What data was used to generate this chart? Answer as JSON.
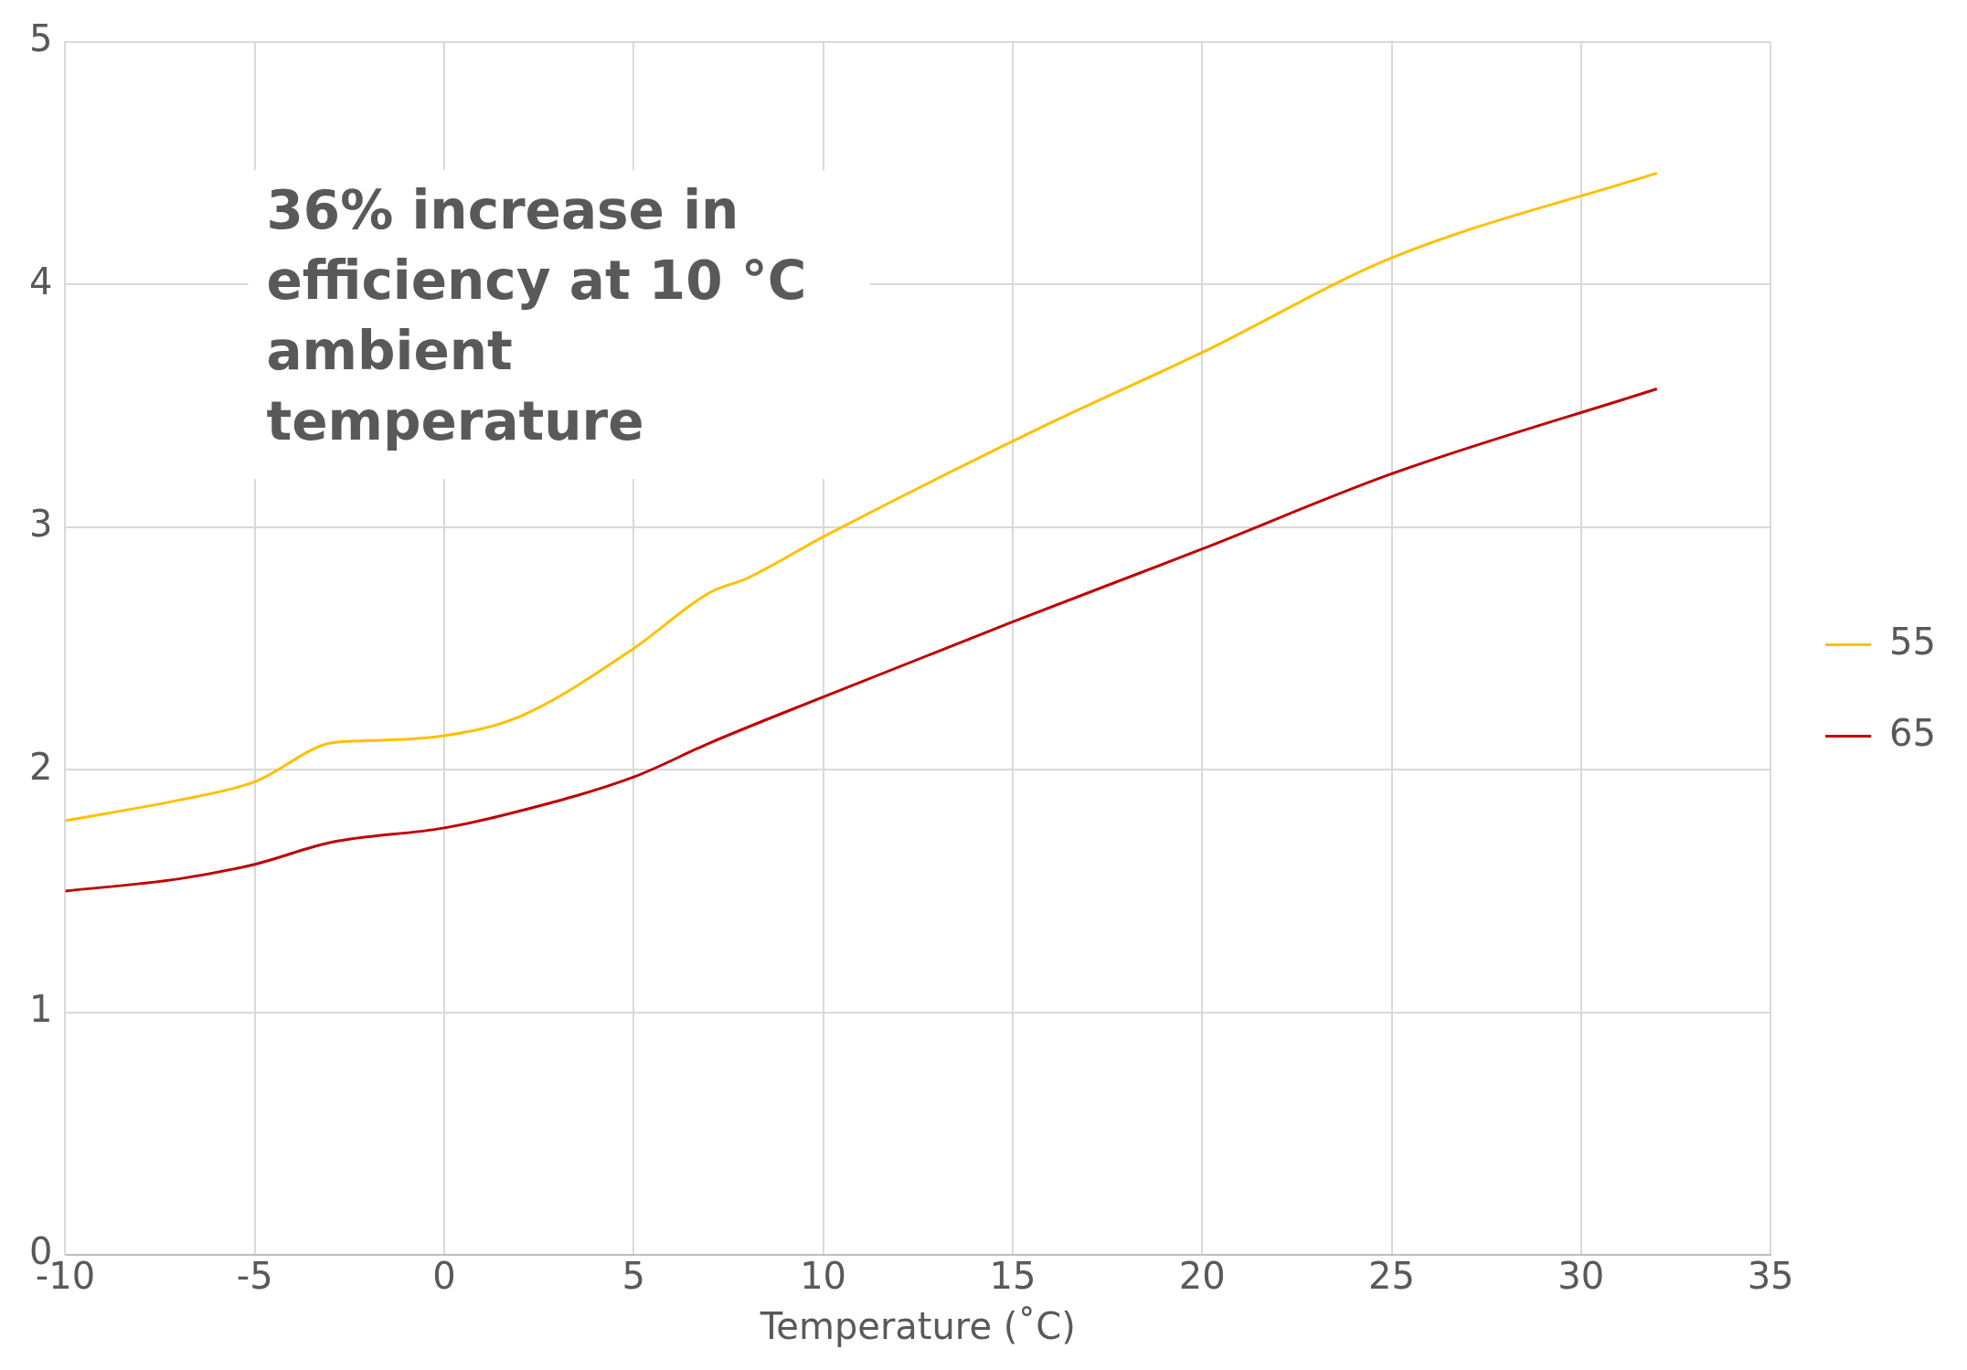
{
  "chart_data": {
    "type": "line",
    "xlabel": "Temperature (˚C)",
    "annotations": [
      "36% increase in efficiency at 10 °C ambient temperature"
    ],
    "series": [
      {
        "name": "55",
        "color": "#ffc000",
        "x": [
          -10,
          -7,
          -5,
          -3,
          -2,
          0,
          2,
          5,
          7,
          8,
          10,
          16,
          20,
          25,
          32
        ],
        "values": [
          1.79,
          1.875,
          1.95,
          2.11,
          2.12,
          2.14,
          2.22,
          2.5,
          2.73,
          2.79,
          2.96,
          3.43,
          3.72,
          4.11,
          4.46
        ]
      },
      {
        "name": "65",
        "color": "#c00000",
        "x": [
          -10,
          -7,
          -5,
          -3,
          0,
          2,
          5,
          7,
          10,
          15,
          20,
          25,
          32
        ],
        "values": [
          1.5,
          1.55,
          1.61,
          1.7,
          1.76,
          1.83,
          1.97,
          2.11,
          2.3,
          2.61,
          2.91,
          3.22,
          3.57
        ]
      }
    ],
    "xlim": [
      -10,
      35
    ],
    "xticks": [
      -10,
      -5,
      0,
      5,
      10,
      15,
      20,
      25,
      30,
      35
    ],
    "ylim": [
      0,
      5
    ],
    "yticks": [
      0,
      1,
      2,
      3,
      4,
      5
    ],
    "grid": true,
    "legend": "right",
    "marker": "none",
    "line_style": "solid"
  }
}
